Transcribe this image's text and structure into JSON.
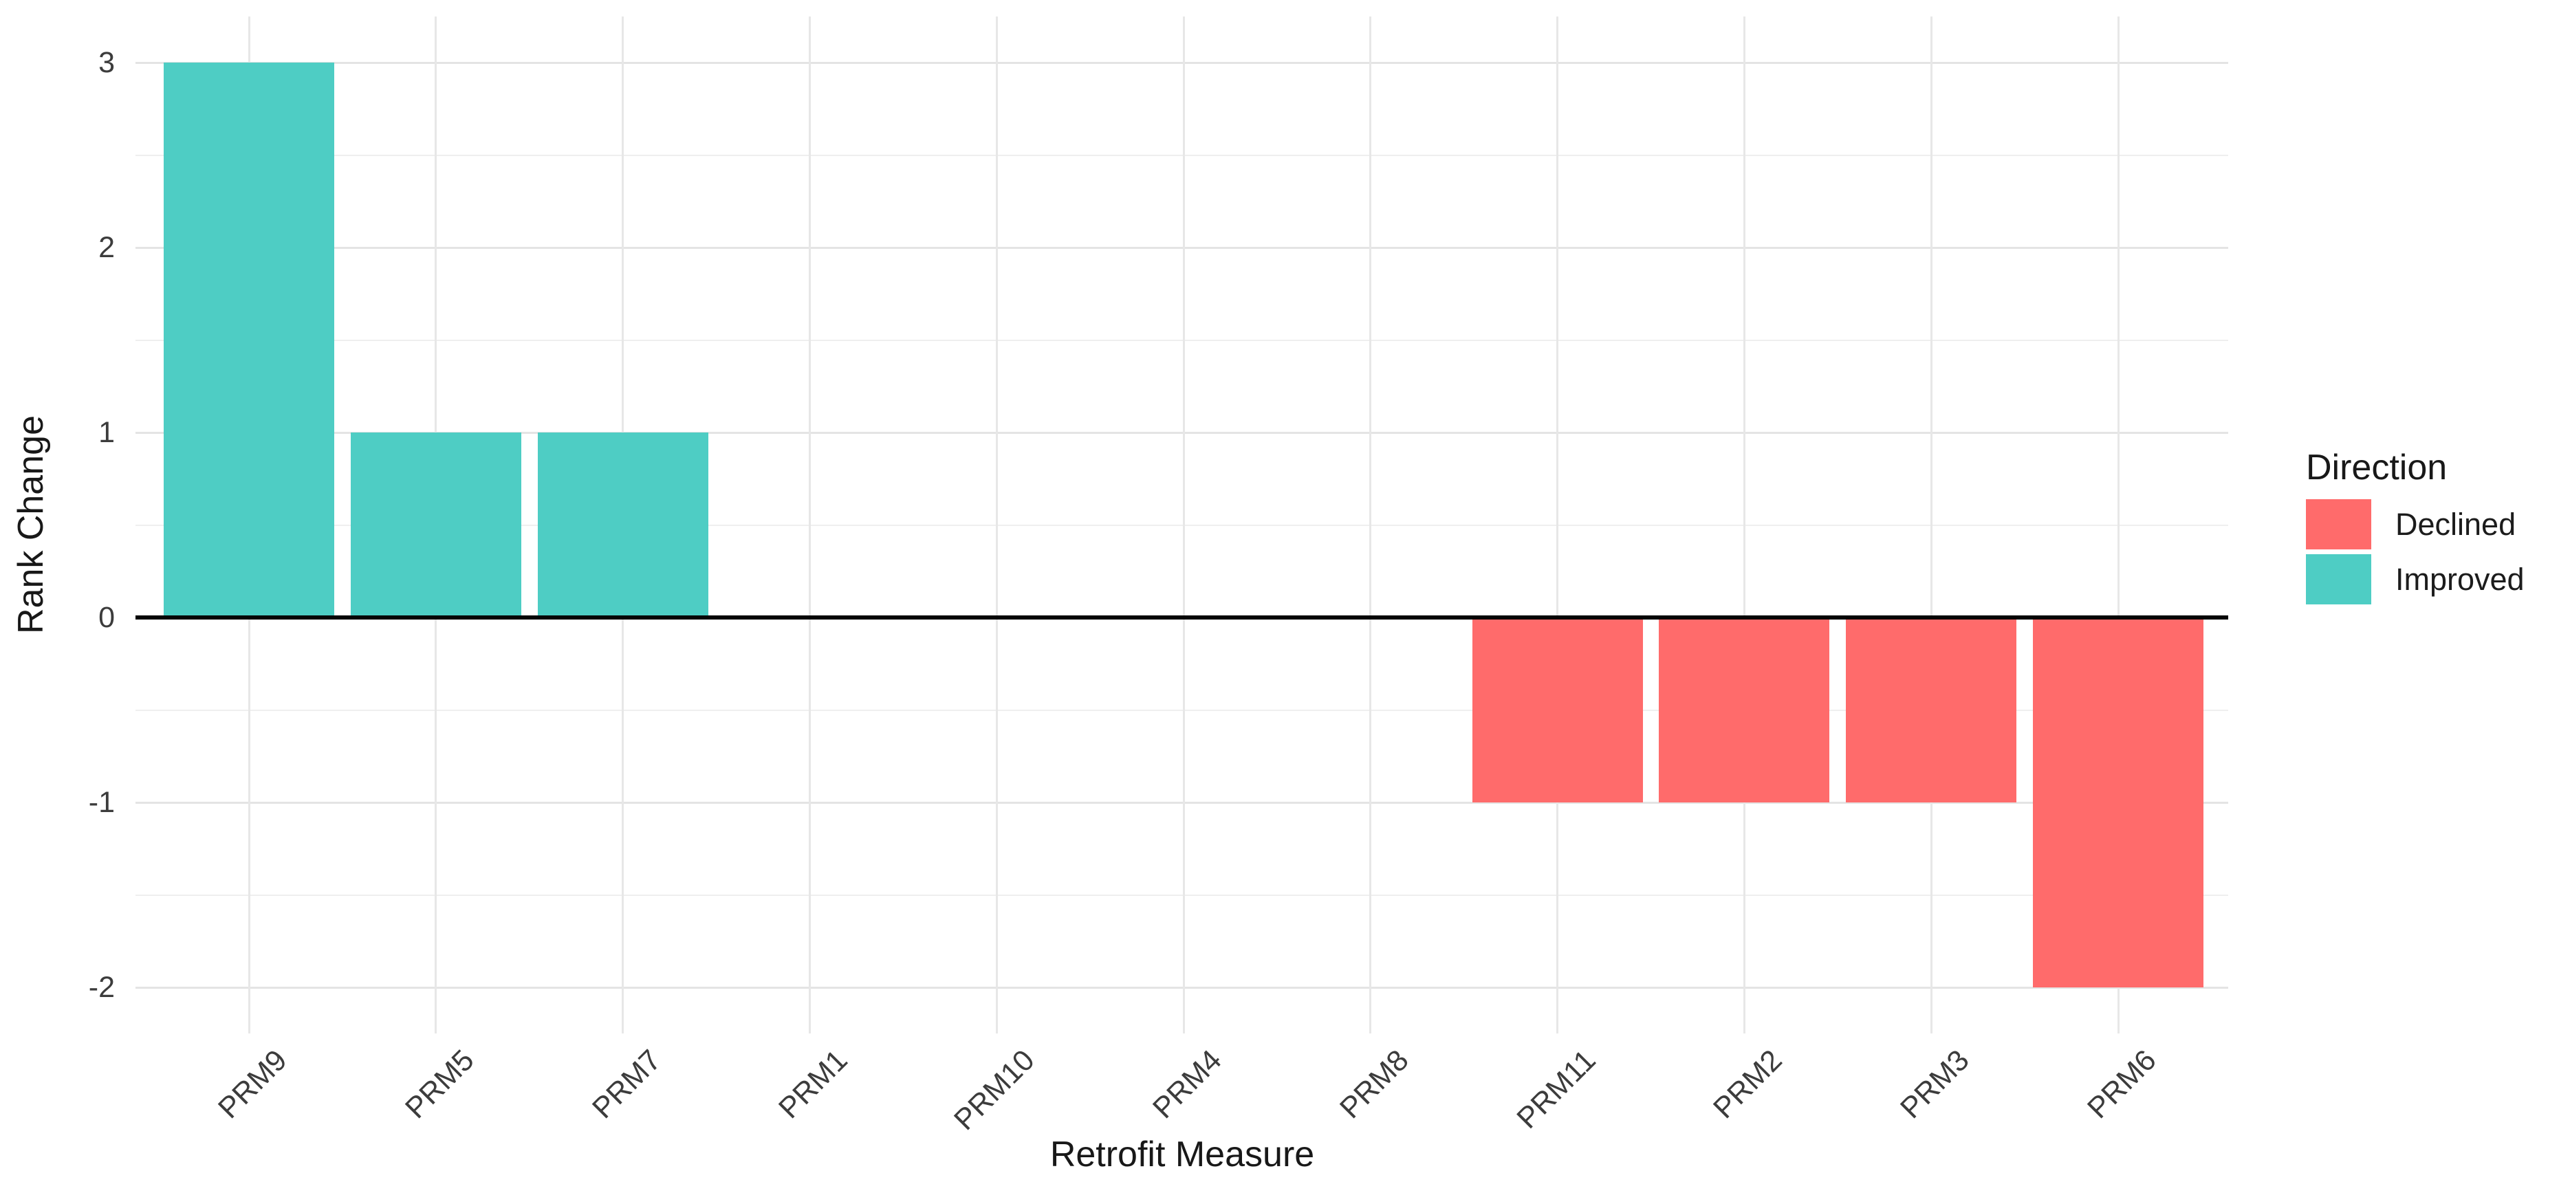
{
  "chart_data": {
    "type": "bar",
    "title": "",
    "xlabel": "Retrofit Measure",
    "ylabel": "Rank Change",
    "categories": [
      "PRM9",
      "PRM5",
      "PRM7",
      "PRM1",
      "PRM10",
      "PRM4",
      "PRM8",
      "PRM11",
      "PRM2",
      "PRM3",
      "PRM6"
    ],
    "values": [
      3,
      1,
      1,
      0,
      0,
      0,
      0,
      -1,
      -1,
      -1,
      -2
    ],
    "directions": [
      "Improved",
      "Improved",
      "Improved",
      null,
      null,
      null,
      null,
      "Declined",
      "Declined",
      "Declined",
      "Declined"
    ],
    "yticks": [
      -2,
      -1,
      0,
      1,
      2,
      3
    ],
    "ytick_minor": [
      -1.5,
      -0.5,
      0.5,
      1.5,
      2.5
    ],
    "ylim": [
      -2.25,
      3.25
    ],
    "zero_line": true,
    "grid": "major horizontal at integers, minor at halves, vertical at each category center",
    "legend": {
      "title": "Direction",
      "position": "right",
      "entries": [
        {
          "label": "Declined",
          "color": "#FF6B6B"
        },
        {
          "label": "Improved",
          "color": "#4ECDC4"
        }
      ]
    },
    "colors": {
      "declined": "#FF6B6B",
      "improved": "#4ECDC4",
      "background": "#FFFFFF",
      "grid_major": "#E4E4E4",
      "grid_minor": "#EFEFEF",
      "zero_line": "#050505",
      "tick_text": "#3C3C3C",
      "title_text": "#181818"
    }
  }
}
